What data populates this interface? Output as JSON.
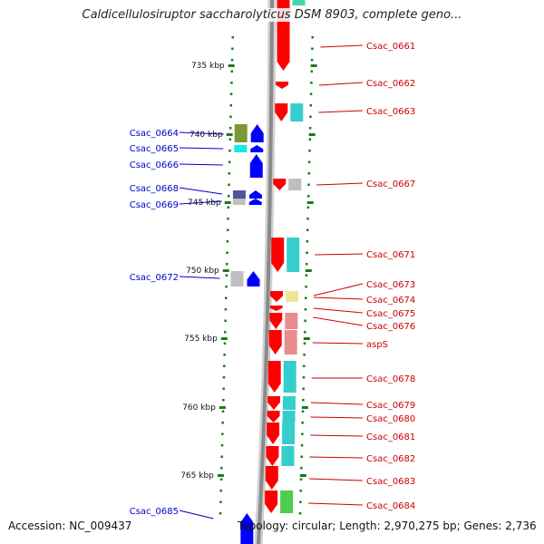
{
  "title": "Caldicellulosiruptor saccharolyticus DSM 8903, complete geno...",
  "footer": {
    "accession": "Accession: NC_009437",
    "summary": "Topology: circular; Length: 2,970,275 bp; Genes: 2,736"
  },
  "colors": {
    "forward_label": "#cc0000",
    "reverse_label": "#0000cc",
    "forward_arrow": "#ff0000",
    "reverse_arrow": "#0000ff",
    "tick": "#1a7a1a",
    "backbone": "#8a8a8a"
  },
  "axis": {
    "unit": "kbp",
    "ticks": [
      {
        "value": 735,
        "label": "735 kbp"
      },
      {
        "value": 740,
        "label": "740 kbp"
      },
      {
        "value": 745,
        "label": "745 kbp"
      },
      {
        "value": 750,
        "label": "750 kbp"
      },
      {
        "value": 755,
        "label": "755 kbp"
      },
      {
        "value": 760,
        "label": "760 kbp"
      },
      {
        "value": 765,
        "label": "765 kbp"
      }
    ]
  },
  "forward_genes": [
    {
      "label": "Csac_0661",
      "cog": "#2fd3a3"
    },
    {
      "label": "Csac_0662",
      "cog": ""
    },
    {
      "label": "Csac_0663",
      "cog": "#20c8c8"
    },
    {
      "label": "Csac_0667",
      "cog": "#b8b8b8"
    },
    {
      "label": "Csac_0671",
      "cog": "#20c8c8"
    },
    {
      "label": "Csac_0673",
      "cog": ""
    },
    {
      "label": "Csac_0674",
      "cog": "#eee08a"
    },
    {
      "label": "Csac_0675",
      "cog": ""
    },
    {
      "label": "Csac_0676",
      "cog": "#e88080"
    },
    {
      "label": "aspS",
      "cog": "#e88080"
    },
    {
      "label": "Csac_0678",
      "cog": "#20c8c8"
    },
    {
      "label": "Csac_0679",
      "cog": "#20c8c8"
    },
    {
      "label": "Csac_0680",
      "cog": "#20c8c8"
    },
    {
      "label": "Csac_0681",
      "cog": "#20c8c8"
    },
    {
      "label": "Csac_0682",
      "cog": "#20c8c8"
    },
    {
      "label": "Csac_0683",
      "cog": ""
    },
    {
      "label": "Csac_0684",
      "cog": "#3cc83c"
    }
  ],
  "reverse_genes": [
    {
      "label": "Csac_0664",
      "cog": "#6b8e23"
    },
    {
      "label": "Csac_0665",
      "cog": "#00e5e5"
    },
    {
      "label": "Csac_0666",
      "cog": ""
    },
    {
      "label": "Csac_0668",
      "cog": "#404090"
    },
    {
      "label": "Csac_0669",
      "cog": "#b8b8b8"
    },
    {
      "label": "Csac_0672",
      "cog": "#b8b8b8"
    },
    {
      "label": "Csac_0685",
      "cog": ""
    }
  ]
}
